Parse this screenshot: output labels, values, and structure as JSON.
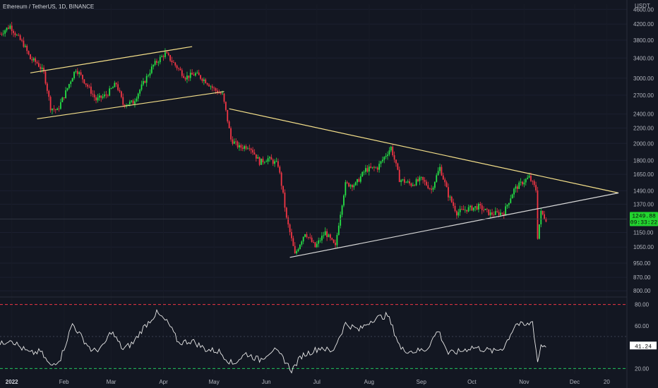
{
  "header": {
    "symbol_title": "Ethereum / TetherUS, 1D, BINANCE",
    "currency_label": "USDT"
  },
  "colors": {
    "bull": "#26e046",
    "bear": "#f23645",
    "trend": "#f5e08a",
    "support": "#d9d9d9",
    "rsi": "#e8e8e8",
    "bg": "#131722",
    "price_tag": "#22d52f",
    "rsi_overbought": "#f23645",
    "rsi_oversold": "#22c55e"
  },
  "price_tag": {
    "value": "1249.88",
    "countdown": "09:33:22"
  },
  "rsi_tag": {
    "value": "41.24"
  },
  "chart_data": [
    {
      "type": "candlestick",
      "title": "Ethereum / TetherUS, 1D, BINANCE",
      "ylabel": "USDT",
      "y_scale": "log",
      "ylim": [
        780,
        4750
      ],
      "y_ticks": [
        "4600.00",
        "4200.00",
        "3800.00",
        "3400.00",
        "3000.00",
        "2700.00",
        "2400.00",
        "2200.00",
        "2000.00",
        "1800.00",
        "1650.00",
        "1490.00",
        "1370.00",
        "1150.00",
        "1050.00",
        "950.00",
        "870.00",
        "800.00"
      ],
      "x_ticks": [
        "2022",
        "Feb",
        "Mar",
        "Apr",
        "May",
        "Jun",
        "Jul",
        "Aug",
        "Sep",
        "Oct",
        "Nov",
        "Dec",
        "20"
      ],
      "x_range": [
        "2021-12-25",
        "2023-01-01"
      ],
      "last_price": 1249.88,
      "close_path": [
        [
          "2021-12-25",
          3950
        ],
        [
          "2021-12-31",
          4150
        ],
        [
          "2022-01-04",
          3900
        ],
        [
          "2022-01-08",
          3700
        ],
        [
          "2022-01-12",
          3380
        ],
        [
          "2022-01-16",
          3300
        ],
        [
          "2022-01-20",
          3100
        ],
        [
          "2022-01-24",
          2500
        ],
        [
          "2022-01-28",
          2450
        ],
        [
          "2022-02-02",
          2750
        ],
        [
          "2022-02-08",
          3180
        ],
        [
          "2022-02-14",
          2900
        ],
        [
          "2022-02-20",
          2620
        ],
        [
          "2022-02-26",
          2700
        ],
        [
          "2022-03-04",
          2900
        ],
        [
          "2022-03-08",
          2550
        ],
        [
          "2022-03-14",
          2580
        ],
        [
          "2022-03-20",
          2900
        ],
        [
          "2022-03-26",
          3250
        ],
        [
          "2022-04-02",
          3500
        ],
        [
          "2022-04-08",
          3250
        ],
        [
          "2022-04-14",
          3020
        ],
        [
          "2022-04-20",
          3080
        ],
        [
          "2022-04-26",
          2950
        ],
        [
          "2022-05-01",
          2800
        ],
        [
          "2022-05-06",
          2700
        ],
        [
          "2022-05-11",
          2050
        ],
        [
          "2022-05-16",
          1950
        ],
        [
          "2022-05-22",
          1970
        ],
        [
          "2022-05-28",
          1780
        ],
        [
          "2022-06-02",
          1820
        ],
        [
          "2022-06-08",
          1750
        ],
        [
          "2022-06-13",
          1250
        ],
        [
          "2022-06-18",
          1000
        ],
        [
          "2022-06-24",
          1150
        ],
        [
          "2022-06-30",
          1050
        ],
        [
          "2022-07-06",
          1150
        ],
        [
          "2022-07-12",
          1050
        ],
        [
          "2022-07-18",
          1550
        ],
        [
          "2022-07-24",
          1550
        ],
        [
          "2022-07-30",
          1700
        ],
        [
          "2022-08-06",
          1720
        ],
        [
          "2022-08-14",
          1950
        ],
        [
          "2022-08-19",
          1600
        ],
        [
          "2022-08-26",
          1550
        ],
        [
          "2022-09-01",
          1600
        ],
        [
          "2022-09-07",
          1500
        ],
        [
          "2022-09-12",
          1720
        ],
        [
          "2022-09-17",
          1450
        ],
        [
          "2022-09-22",
          1300
        ],
        [
          "2022-09-28",
          1330
        ],
        [
          "2022-10-05",
          1350
        ],
        [
          "2022-10-12",
          1290
        ],
        [
          "2022-10-20",
          1300
        ],
        [
          "2022-10-26",
          1500
        ],
        [
          "2022-10-31",
          1570
        ],
        [
          "2022-11-04",
          1620
        ],
        [
          "2022-11-08",
          1500
        ],
        [
          "2022-11-09",
          1120
        ],
        [
          "2022-11-11",
          1300
        ],
        [
          "2022-11-14",
          1250
        ]
      ],
      "trendlines": [
        {
          "name": "channel-upper",
          "from": [
            "2022-01-12",
            3100
          ],
          "to": [
            "2022-04-18",
            3650
          ]
        },
        {
          "name": "channel-lower",
          "from": [
            "2022-01-16",
            2330
          ],
          "to": [
            "2022-05-07",
            2760
          ]
        },
        {
          "name": "descending-resistance",
          "from": [
            "2022-05-10",
            2480
          ],
          "to": [
            "2022-12-27",
            1470
          ]
        },
        {
          "name": "ascending-support",
          "from": [
            "2022-06-15",
            985
          ],
          "to": [
            "2022-12-27",
            1470
          ]
        }
      ]
    },
    {
      "type": "line",
      "ylim": [
        15,
        85
      ],
      "y_ticks": [
        "80.00",
        "60.00",
        "20.00"
      ],
      "overbought": 80,
      "midline": 50,
      "oversold": 20,
      "last_value": 41.24,
      "rsi_path": [
        [
          "2021-12-25",
          42
        ],
        [
          "2021-12-31",
          48
        ],
        [
          "2022-01-06",
          40
        ],
        [
          "2022-01-12",
          34
        ],
        [
          "2022-01-18",
          36
        ],
        [
          "2022-01-24",
          22
        ],
        [
          "2022-01-30",
          30
        ],
        [
          "2022-02-06",
          62
        ],
        [
          "2022-02-12",
          48
        ],
        [
          "2022-02-18",
          36
        ],
        [
          "2022-02-24",
          40
        ],
        [
          "2022-03-01",
          55
        ],
        [
          "2022-03-08",
          38
        ],
        [
          "2022-03-14",
          44
        ],
        [
          "2022-03-20",
          58
        ],
        [
          "2022-03-28",
          72
        ],
        [
          "2022-04-04",
          62
        ],
        [
          "2022-04-10",
          44
        ],
        [
          "2022-04-18",
          46
        ],
        [
          "2022-04-26",
          38
        ],
        [
          "2022-05-04",
          36
        ],
        [
          "2022-05-12",
          24
        ],
        [
          "2022-05-20",
          34
        ],
        [
          "2022-05-28",
          28
        ],
        [
          "2022-06-05",
          38
        ],
        [
          "2022-06-11",
          30
        ],
        [
          "2022-06-16",
          18
        ],
        [
          "2022-06-22",
          32
        ],
        [
          "2022-06-28",
          36
        ],
        [
          "2022-07-04",
          40
        ],
        [
          "2022-07-10",
          35
        ],
        [
          "2022-07-18",
          62
        ],
        [
          "2022-07-26",
          56
        ],
        [
          "2022-08-03",
          66
        ],
        [
          "2022-08-12",
          70
        ],
        [
          "2022-08-20",
          38
        ],
        [
          "2022-08-27",
          36
        ],
        [
          "2022-09-04",
          38
        ],
        [
          "2022-09-11",
          56
        ],
        [
          "2022-09-17",
          34
        ],
        [
          "2022-09-24",
          36
        ],
        [
          "2022-10-01",
          40
        ],
        [
          "2022-10-08",
          38
        ],
        [
          "2022-10-14",
          36
        ],
        [
          "2022-10-20",
          40
        ],
        [
          "2022-10-27",
          62
        ],
        [
          "2022-11-02",
          60
        ],
        [
          "2022-11-06",
          64
        ],
        [
          "2022-11-09",
          26
        ],
        [
          "2022-11-11",
          42
        ],
        [
          "2022-11-14",
          41.24
        ]
      ]
    }
  ]
}
